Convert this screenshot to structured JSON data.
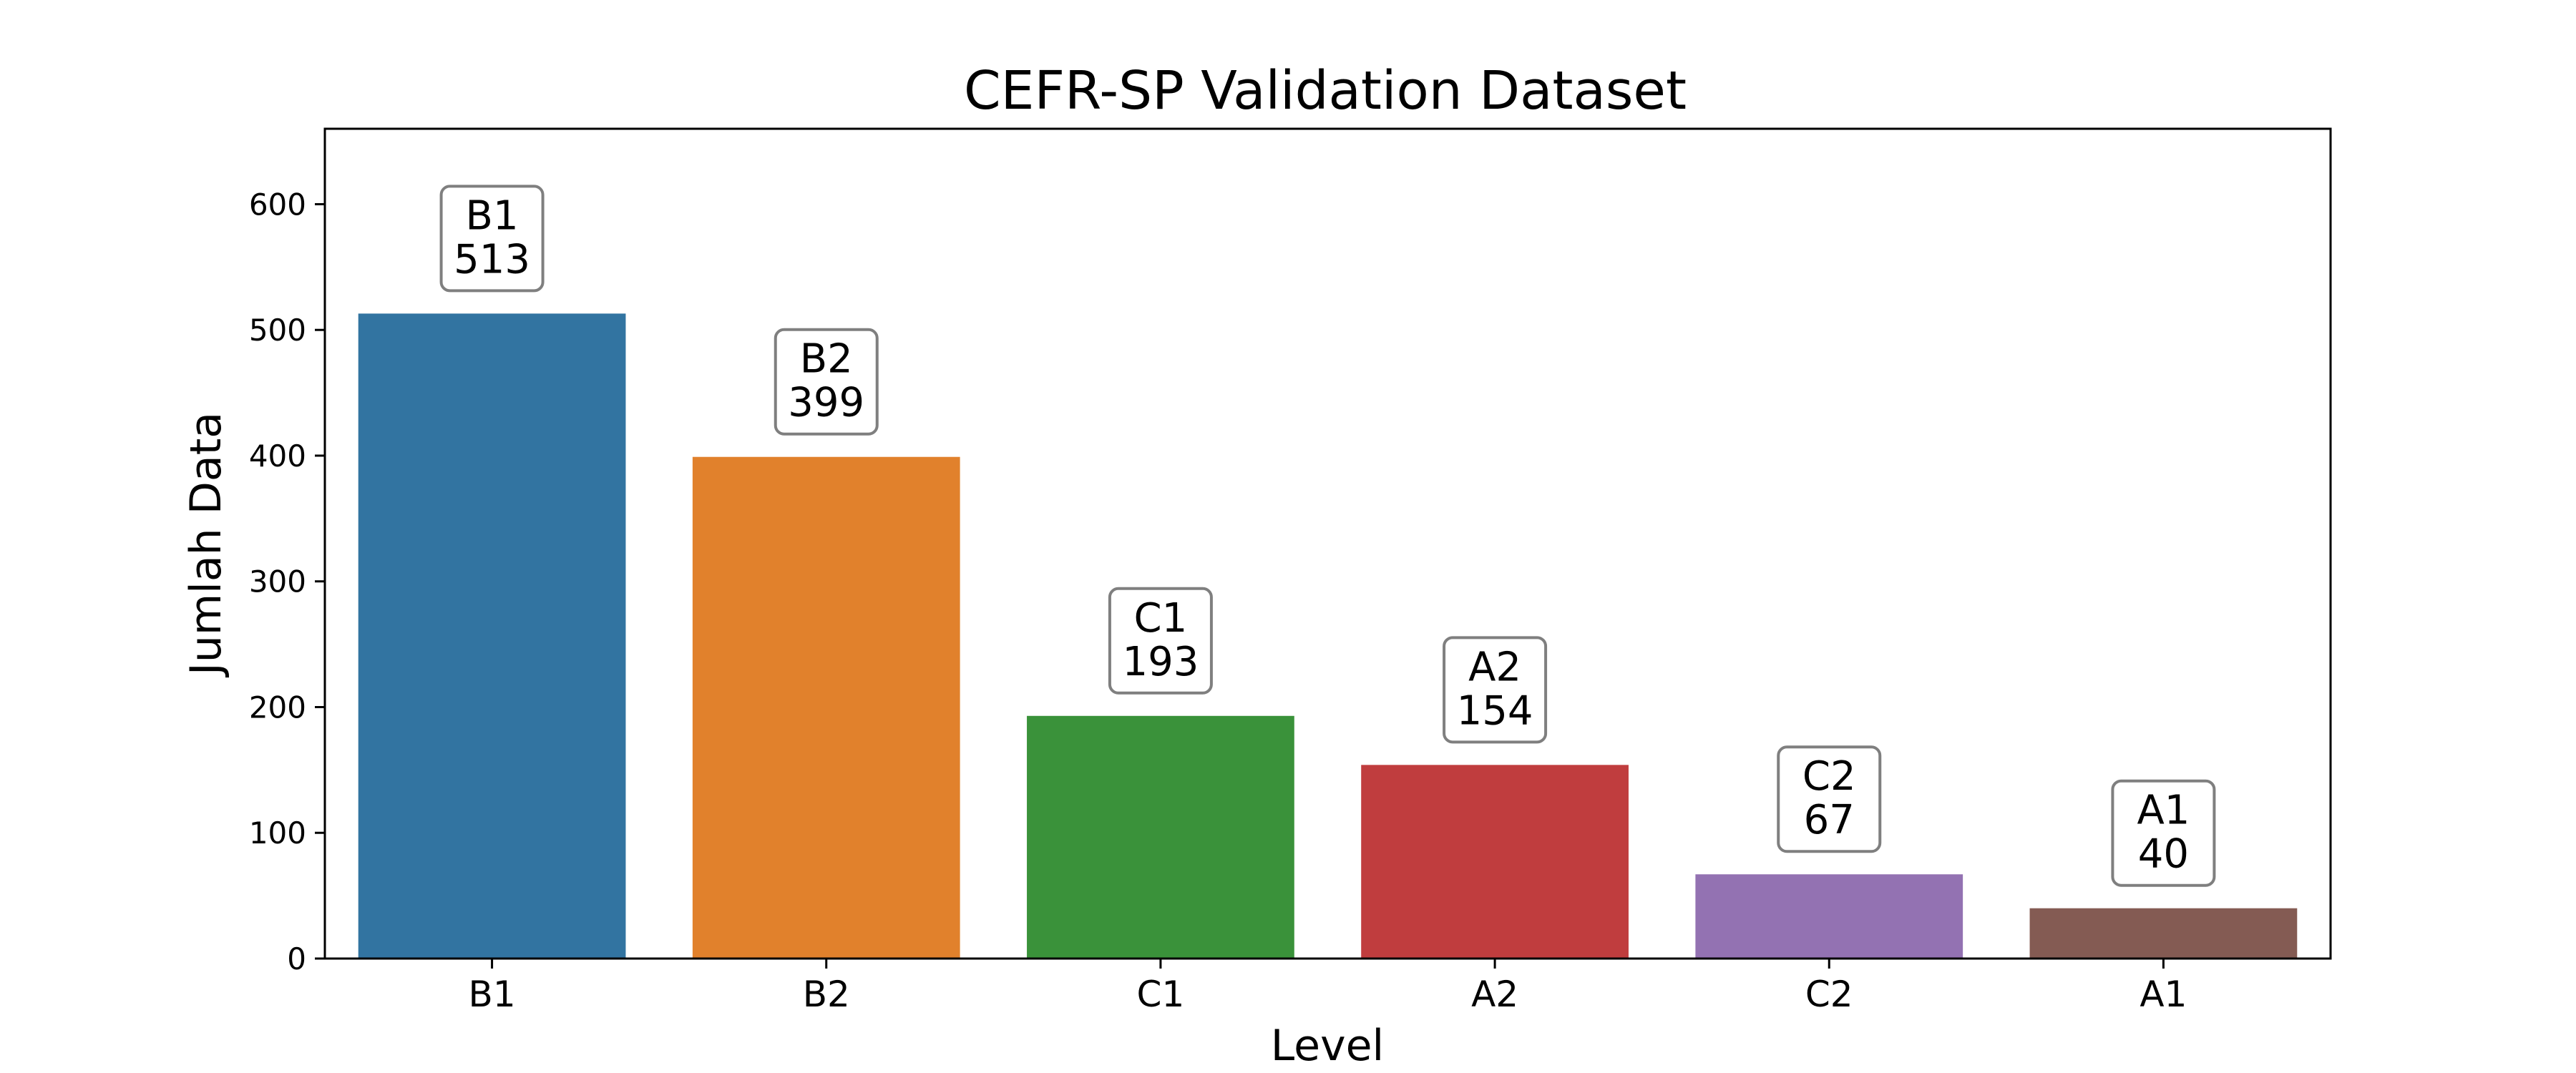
{
  "chart_data": {
    "type": "bar",
    "title": "CEFR-SP Validation Dataset",
    "xlabel": "Level",
    "ylabel": "Jumlah Data",
    "categories": [
      "B1",
      "B2",
      "C1",
      "A2",
      "C2",
      "A1"
    ],
    "values": [
      513,
      399,
      193,
      154,
      67,
      40
    ],
    "colors": [
      "#3274a1",
      "#e1812c",
      "#3a923a",
      "#c03d3e",
      "#9372b2",
      "#845b53"
    ],
    "ylim": [
      0,
      660
    ],
    "yticks": [
      0,
      100,
      200,
      300,
      400,
      500,
      600
    ],
    "grid": false,
    "legend": false,
    "data_labels": [
      {
        "category": "B1",
        "value": "513"
      },
      {
        "category": "B2",
        "value": "399"
      },
      {
        "category": "C1",
        "value": "193"
      },
      {
        "category": "A2",
        "value": "154"
      },
      {
        "category": "C2",
        "value": "67"
      },
      {
        "category": "A1",
        "value": "40"
      }
    ]
  }
}
